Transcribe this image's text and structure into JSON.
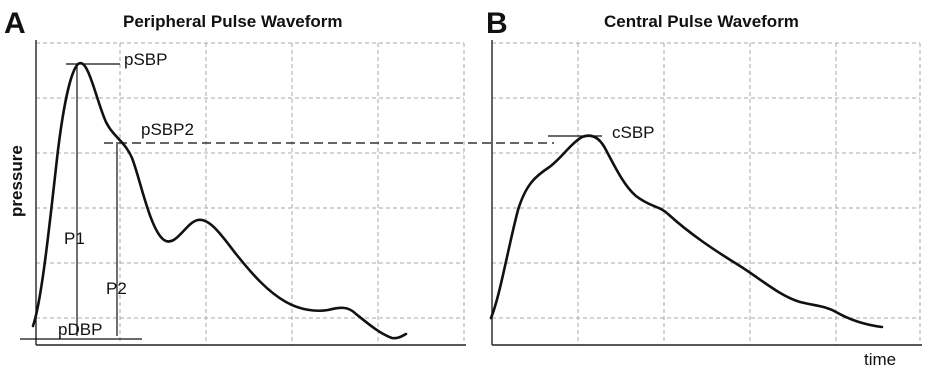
{
  "panel_a": {
    "letter": "A",
    "title": "Peripheral Pulse Waveform",
    "labels": {
      "psbp": "pSBP",
      "psbp2": "pSBP2",
      "p1": "P1",
      "p2": "P2",
      "pdbp": "pDBP"
    }
  },
  "panel_b": {
    "letter": "B",
    "title": "Central Pulse Waveform",
    "labels": {
      "csbp": "cSBP"
    }
  },
  "axes": {
    "ylabel": "pressure",
    "xlabel": "time"
  },
  "colors": {
    "waveform": "#111111",
    "grid": "#a8a8a8",
    "background": "#ffffff"
  }
}
